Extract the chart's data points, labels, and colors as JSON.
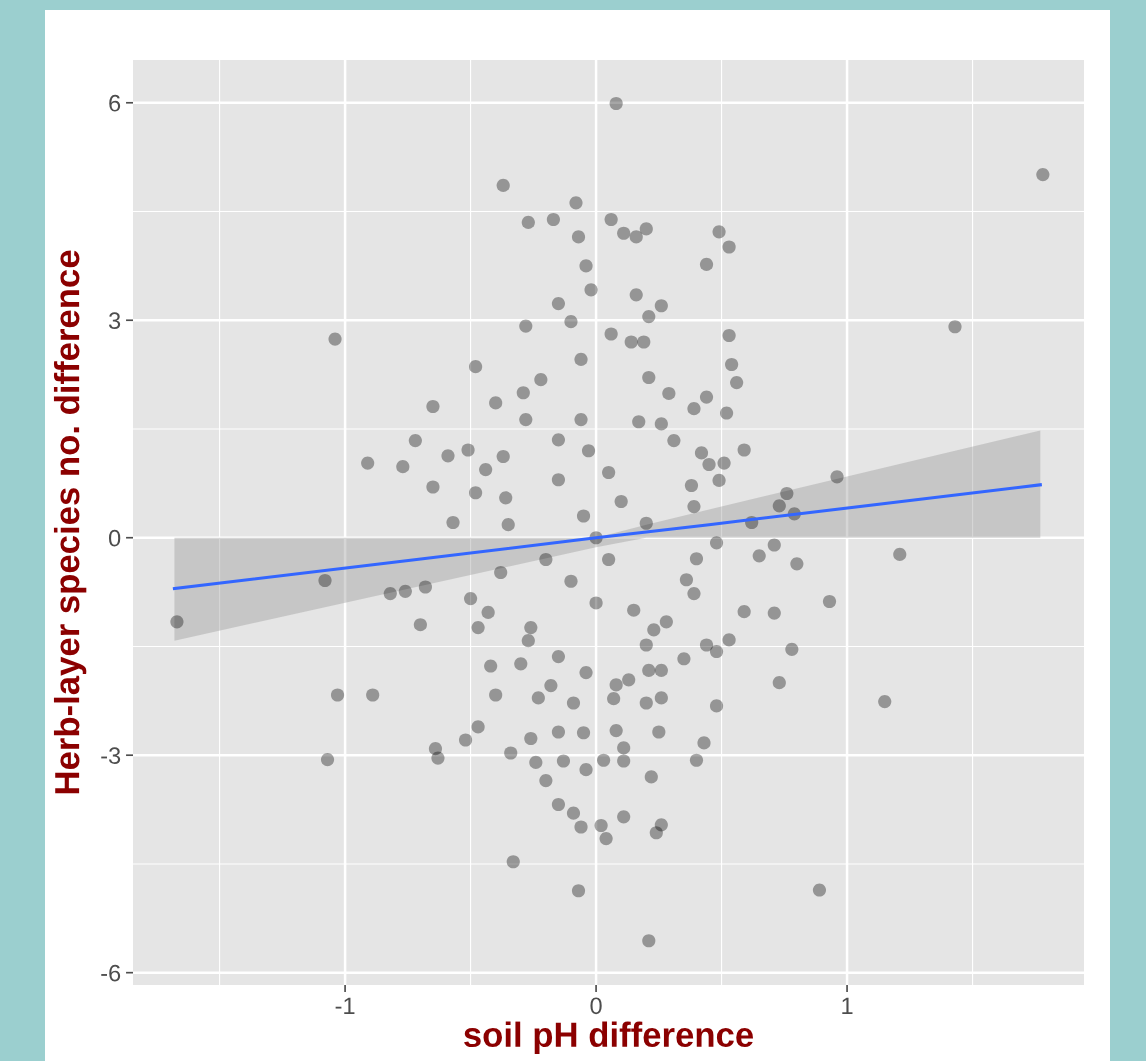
{
  "chart_data": {
    "type": "scatter",
    "xlabel": "soil pH difference",
    "ylabel": "Herb-layer species no. difference",
    "xlim": [
      -1.845,
      1.944
    ],
    "ylim": [
      -6.17,
      6.59
    ],
    "xticks": [
      -1,
      0,
      1
    ],
    "yticks": [
      -6,
      -3,
      0,
      3,
      6
    ],
    "grid": true,
    "series": [
      {
        "marker": "circle",
        "color": "#000000",
        "x": [
          -0.37,
          -0.08,
          -0.27,
          -0.17,
          -0.07,
          -0.04,
          -0.02,
          -0.15,
          -0.1,
          -0.28,
          -1.04,
          -0.48,
          -0.06,
          -0.65,
          -0.29,
          -0.22,
          -0.4,
          -0.28,
          -0.72,
          -0.91,
          -0.77,
          -0.59,
          -0.51,
          -0.37,
          -0.65,
          -0.48,
          -0.36,
          -0.44,
          -0.57,
          -0.35,
          -0.15,
          -0.06,
          0.08,
          1.78,
          0.06,
          0.11,
          0.16,
          0.2,
          0.49,
          0.53,
          0.44,
          0.16,
          0.26,
          0.21,
          0.06,
          0.14,
          0.19,
          1.43,
          0.53,
          0.54,
          0.56,
          0.21,
          0.29,
          0.44,
          0.39,
          0.52,
          0.59,
          0.51,
          0.45,
          0.42,
          0.49,
          0.96,
          0.76,
          0.73,
          0.79,
          0.31,
          0.26,
          0.17,
          0.39,
          0.62,
          0.38,
          -1.67,
          -1.08,
          -0.82,
          -0.76,
          -0.68,
          -0.7,
          -1.03,
          -0.89,
          -1.07,
          -0.64,
          -0.63,
          -0.52,
          -0.47,
          -0.34,
          -0.33,
          -0.07,
          -0.15,
          -0.09,
          -0.06,
          -0.2,
          -0.24,
          -0.13,
          -0.04,
          -0.26,
          -0.15,
          -0.05,
          -0.4,
          -0.42,
          -0.3,
          -0.23,
          -0.18,
          -0.09,
          -0.47,
          -0.5,
          -0.43,
          -0.38,
          -0.27,
          -0.15,
          -0.04,
          -0.26,
          1.21,
          0.93,
          1.15,
          0.89,
          0.21,
          0.78,
          0.73,
          0.71,
          0.59,
          0.8,
          0.71,
          0.65,
          0.48,
          0.48,
          0.53,
          0.44,
          0.48,
          0.35,
          0.43,
          0.4,
          0.25,
          0.22,
          0.11,
          0.26,
          0.24,
          0.04,
          0.02,
          0.11,
          0.03,
          0.11,
          0.08,
          0.2,
          0.26,
          0.07,
          0.08,
          0.13,
          0.26,
          0.21,
          0.23,
          0.36,
          0.39,
          0.4,
          0.28,
          0.2,
          0.0,
          -0.05,
          0.05,
          -0.1,
          0.1,
          0.0,
          -0.15,
          0.15,
          -0.03,
          0.05,
          -0.2,
          0.2
        ],
        "values": [
          4.86,
          4.62,
          4.35,
          4.39,
          4.15,
          3.75,
          3.42,
          3.23,
          2.98,
          2.92,
          2.74,
          2.36,
          2.46,
          1.81,
          2.0,
          2.18,
          1.86,
          1.63,
          1.34,
          1.03,
          0.98,
          1.13,
          1.21,
          1.12,
          0.7,
          0.62,
          0.55,
          0.94,
          0.21,
          0.18,
          1.35,
          1.63,
          5.99,
          5.01,
          4.39,
          4.2,
          4.15,
          4.26,
          4.22,
          4.01,
          3.77,
          3.35,
          3.2,
          3.05,
          2.81,
          2.7,
          2.7,
          2.91,
          2.79,
          2.39,
          2.14,
          2.21,
          1.99,
          1.94,
          1.78,
          1.72,
          1.21,
          1.03,
          1.01,
          1.17,
          0.79,
          0.84,
          0.61,
          0.44,
          0.33,
          1.34,
          1.57,
          1.6,
          0.43,
          0.21,
          0.72,
          -1.16,
          -0.59,
          -0.77,
          -0.74,
          -0.68,
          -1.2,
          -2.17,
          -2.17,
          -3.06,
          -2.91,
          -3.04,
          -2.79,
          -2.61,
          -2.97,
          -4.47,
          -4.87,
          -3.68,
          -3.8,
          -3.99,
          -3.35,
          -3.1,
          -3.08,
          -3.2,
          -2.77,
          -2.68,
          -2.69,
          -2.17,
          -1.77,
          -1.74,
          -2.21,
          -2.04,
          -2.28,
          -1.24,
          -0.84,
          -1.03,
          -0.48,
          -1.42,
          -1.64,
          -1.86,
          -1.24,
          -0.23,
          -0.88,
          -2.26,
          -4.86,
          -5.56,
          -1.54,
          -2.0,
          -1.04,
          -1.02,
          -0.36,
          -0.1,
          -0.25,
          -0.07,
          -1.57,
          -1.41,
          -1.48,
          -2.32,
          -1.67,
          -2.83,
          -3.07,
          -2.68,
          -3.3,
          -3.85,
          -3.96,
          -4.07,
          -4.15,
          -3.97,
          -3.08,
          -3.07,
          -2.9,
          -2.66,
          -2.28,
          -2.21,
          -2.22,
          -2.03,
          -1.96,
          -1.83,
          -1.83,
          -1.27,
          -0.58,
          -0.77,
          -0.29,
          -1.16,
          -1.48,
          0.0,
          0.3,
          -0.3,
          -0.6,
          0.5,
          -0.9,
          0.8,
          -1.0,
          1.2,
          0.9,
          -0.3,
          0.2
        ]
      },
      {
        "type": "line",
        "color": "#3366ff",
        "x": [
          -1.68,
          -0.69,
          0,
          0.2,
          0.45,
          1.77
        ],
        "values": [
          -0.7,
          -0.29,
          0.0,
          0.08,
          0.18,
          0.73
        ],
        "lower": [
          -1.42,
          -0.66,
          -0.13,
          0,
          0,
          0
        ],
        "upper": [
          0,
          0,
          0,
          0.18,
          0.39,
          1.48
        ]
      }
    ]
  }
}
